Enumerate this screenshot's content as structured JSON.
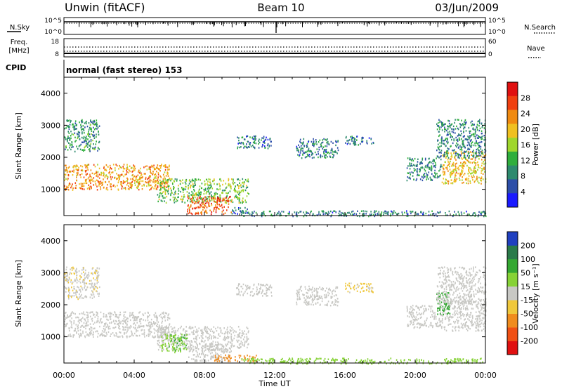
{
  "header": {
    "site": "Unwin (fitACF)",
    "beam": "Beam 10",
    "date": "03/Jun/2009"
  },
  "summary": {
    "left_labels": {
      "nsky": "N.Sky",
      "freq_line1": "Freq.",
      "freq_line2": "[MHz]",
      "cpid": "CPID"
    },
    "right_labels": {
      "nsearch": "N.Search",
      "nave": "Nave"
    },
    "noise_ticks": [
      "10^5",
      "10^0"
    ],
    "freq_ticks": [
      "18",
      "8"
    ],
    "nave_ticks": [
      "60",
      "0"
    ],
    "cpid_text": "normal (fast stereo) 153"
  },
  "x_tick_labels": [
    "00:00",
    "04:00",
    "08:00",
    "12:00",
    "16:00",
    "20:00",
    "00:00"
  ],
  "x_title": "Time UT",
  "colors": {
    "power_scale": [
      "#1a1aff",
      "#2c4ea8",
      "#2d8a6e",
      "#2fae3c",
      "#9fd62c",
      "#f0c020",
      "#f08a10",
      "#f04010",
      "#e01010"
    ],
    "velocity_scale": [
      "#2040c0",
      "#2a7a4a",
      "#34a832",
      "#86d236",
      "#c8c8c4",
      "#f0c83c",
      "#f08c1e",
      "#f05014",
      "#e01010"
    ]
  },
  "chart_data": [
    {
      "type": "heatmap",
      "panel": "power",
      "xlabel": "Time UT",
      "ylabel": "Slant Range [km]",
      "xlim": [
        0,
        24
      ],
      "ylim": [
        180,
        4500
      ],
      "y_ticks": [
        "1000",
        "2000",
        "3000",
        "4000"
      ],
      "colorbar": {
        "label": "Power [dB]",
        "ticks": [
          "4",
          "8",
          "12",
          "16",
          "20",
          "24",
          "28"
        ]
      },
      "echo_regions": [
        {
          "t": [
            0.0,
            6.0
          ],
          "range_km": [
            1000,
            1800
          ],
          "value": 22
        },
        {
          "t": [
            0.0,
            2.0
          ],
          "range_km": [
            2200,
            3200
          ],
          "value": 10
        },
        {
          "t": [
            5.3,
            10.5
          ],
          "range_km": [
            600,
            1350
          ],
          "value": 14
        },
        {
          "t": [
            7.0,
            9.5
          ],
          "range_km": [
            250,
            800
          ],
          "value": 26
        },
        {
          "t": [
            9.5,
            10.5
          ],
          "range_km": [
            250,
            450
          ],
          "value": 6
        },
        {
          "t": [
            10.0,
            24.0
          ],
          "range_km": [
            180,
            350
          ],
          "value": 8
        },
        {
          "t": [
            9.8,
            11.8
          ],
          "range_km": [
            2300,
            2700
          ],
          "value": 7
        },
        {
          "t": [
            13.2,
            15.6
          ],
          "range_km": [
            2000,
            2600
          ],
          "value": 8
        },
        {
          "t": [
            16.0,
            17.6
          ],
          "range_km": [
            2400,
            2700
          ],
          "value": 7
        },
        {
          "t": [
            19.5,
            21.5
          ],
          "range_km": [
            1300,
            2000
          ],
          "value": 9
        },
        {
          "t": [
            21.5,
            24.0
          ],
          "range_km": [
            1200,
            2200
          ],
          "value": 20
        },
        {
          "t": [
            21.2,
            24.0
          ],
          "range_km": [
            2000,
            3200
          ],
          "value": 9
        }
      ]
    },
    {
      "type": "heatmap",
      "panel": "velocity",
      "xlabel": "Time UT",
      "ylabel": "Slant Range [km]",
      "xlim": [
        0,
        24
      ],
      "ylim": [
        180,
        4500
      ],
      "y_ticks": [
        "1000",
        "2000",
        "3000",
        "4000"
      ],
      "colorbar": {
        "label": "Velocity [m s⁻¹]",
        "ticks": [
          "200",
          "100",
          "50",
          "15",
          "-15",
          "-50",
          "-100",
          "-200"
        ]
      },
      "echo_regions": [
        {
          "t": [
            0.0,
            6.0
          ],
          "range_km": [
            1000,
            1800
          ],
          "value": 0
        },
        {
          "t": [
            0.0,
            2.0
          ],
          "range_km": [
            2200,
            3200
          ],
          "value": -10
        },
        {
          "t": [
            5.3,
            10.5
          ],
          "range_km": [
            600,
            1350
          ],
          "value": 0
        },
        {
          "t": [
            5.5,
            7.0
          ],
          "range_km": [
            500,
            1100
          ],
          "value": 45
        },
        {
          "t": [
            7.0,
            9.5
          ],
          "range_km": [
            250,
            800
          ],
          "value": 5
        },
        {
          "t": [
            8.5,
            11.0
          ],
          "range_km": [
            250,
            450
          ],
          "value": -60
        },
        {
          "t": [
            10.0,
            24.0
          ],
          "range_km": [
            180,
            350
          ],
          "value": 30
        },
        {
          "t": [
            9.8,
            11.8
          ],
          "range_km": [
            2300,
            2700
          ],
          "value": 0
        },
        {
          "t": [
            13.2,
            15.6
          ],
          "range_km": [
            2000,
            2600
          ],
          "value": 0
        },
        {
          "t": [
            16.0,
            17.6
          ],
          "range_km": [
            2400,
            2700
          ],
          "value": -20
        },
        {
          "t": [
            19.5,
            21.5
          ],
          "range_km": [
            1300,
            2000
          ],
          "value": 0
        },
        {
          "t": [
            21.5,
            24.0
          ],
          "range_km": [
            1200,
            2200
          ],
          "value": 5
        },
        {
          "t": [
            21.2,
            22.0
          ],
          "range_km": [
            1700,
            2400
          ],
          "value": 60
        },
        {
          "t": [
            21.2,
            24.0
          ],
          "range_km": [
            2000,
            3200
          ],
          "value": 0
        }
      ]
    }
  ]
}
